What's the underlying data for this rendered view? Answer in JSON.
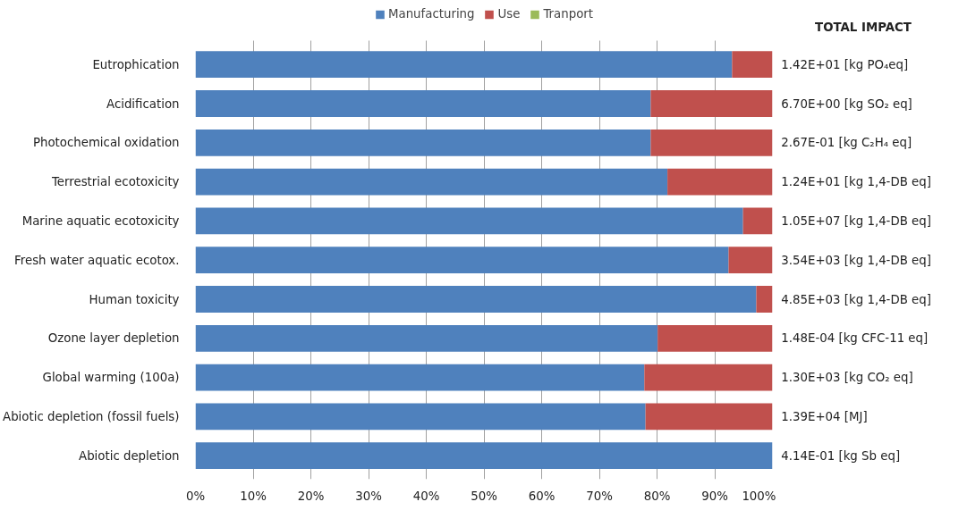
{
  "chart_data": {
    "type": "bar",
    "orientation": "horizontal",
    "stacked": true,
    "categories": [
      "Eutrophication",
      "Acidification",
      "Photochemical oxidation",
      "Terrestrial ecotoxicity",
      "Marine aquatic ecotoxicity",
      "Fresh water aquatic ecotox.",
      "Human toxicity",
      "Ozone layer depletion",
      "Global warming (100a)",
      "Abiotic depletion (fossil fuels)",
      "Abiotic depletion"
    ],
    "series": [
      {
        "name": "Manufacturing",
        "color": "#4f81bd",
        "values": [
          93.0,
          78.9,
          78.9,
          81.8,
          94.9,
          92.4,
          97.2,
          80.1,
          77.8,
          78.0,
          100
        ]
      },
      {
        "name": "Use",
        "color": "#c0504d",
        "values": [
          7.0,
          21.1,
          21.1,
          18.2,
          5.1,
          7.6,
          2.8,
          19.9,
          22.2,
          22.0,
          0
        ]
      },
      {
        "name": "Tranport",
        "color": "#9bbb59",
        "values": [
          0,
          0,
          0,
          0,
          0,
          0,
          0,
          0,
          0,
          0,
          0
        ]
      }
    ],
    "xlim": [
      0,
      100
    ],
    "xticks": [
      {
        "value": 0,
        "label": "0%"
      },
      {
        "value": 10,
        "label": "10%"
      },
      {
        "value": 20,
        "label": "20%"
      },
      {
        "value": 30,
        "label": "30%"
      },
      {
        "value": 40,
        "label": "40%"
      },
      {
        "value": 50,
        "label": "50%"
      },
      {
        "value": 60,
        "label": "60%"
      },
      {
        "value": 70,
        "label": "70%"
      },
      {
        "value": 80,
        "label": "80%"
      },
      {
        "value": 90,
        "label": "90%"
      },
      {
        "value": 100,
        "label": "100%"
      }
    ],
    "grid": "x",
    "legend": "top",
    "annotations": [
      "TOTAL IMPACT",
      "1.42E+01  [kg PO₄eq]",
      "6.70E+00  [kg SO₂ eq]",
      "2.67E-01  [kg C₂H₄ eq]",
      "1.24E+01  [kg 1,4-DB eq]",
      "1.05E+07  [kg 1,4-DB eq]",
      "3.54E+03  [kg 1,4-DB eq]",
      "4.85E+03  [kg 1,4-DB eq]",
      "1.48E-04  [kg CFC-11 eq]",
      "1.30E+03  [kg CO₂ eq]",
      "1.39E+04  [MJ]",
      "4.14E-01  [kg Sb eq]"
    ]
  }
}
